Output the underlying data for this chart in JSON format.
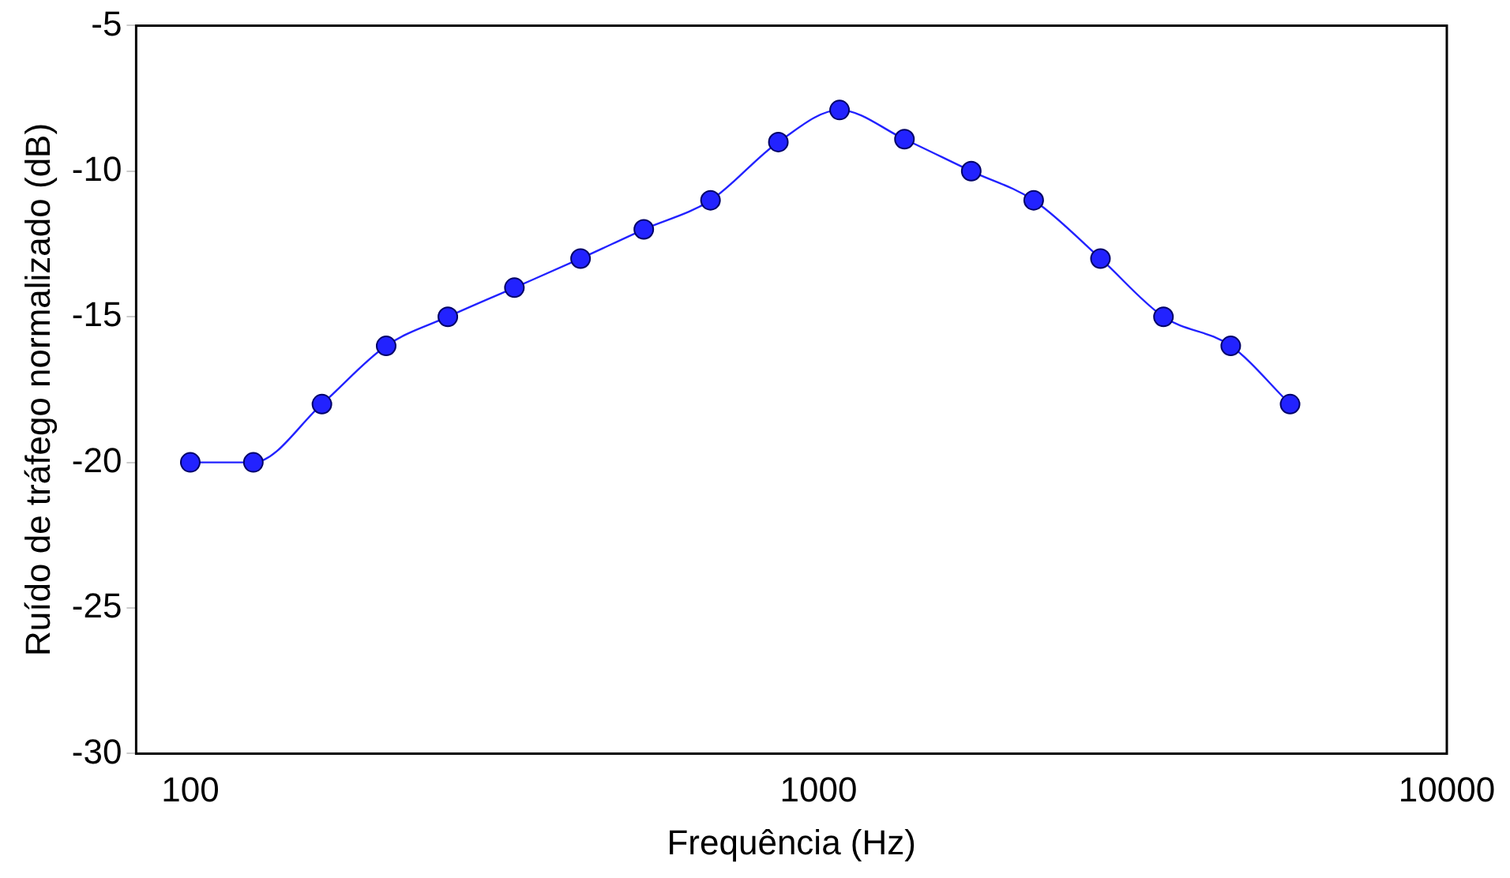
{
  "chart_data": {
    "type": "line",
    "xlabel": "Frequência (Hz)",
    "ylabel": "Ruído de tráfego normalizado (dB)",
    "log": "x",
    "xlim": [
      82,
      10000
    ],
    "xticks": [
      100,
      1000,
      10000
    ],
    "ylim": [
      -30,
      -5
    ],
    "yticks": [
      -30,
      -25,
      -20,
      -15,
      -10,
      -5
    ],
    "grid": false,
    "legend": false,
    "marker": "circle",
    "line_style": "solid",
    "x": [
      100,
      126,
      162,
      205,
      257,
      328,
      418,
      527,
      673,
      863,
      1080,
      1370,
      1750,
      2200,
      2810,
      3540,
      4530,
      5630
    ],
    "series": [
      {
        "color": "#2222ff",
        "values": [
          -20,
          -20,
          -18,
          -16,
          -15,
          -14,
          -13,
          -12,
          -11,
          -9,
          -7.9,
          -8.9,
          -10,
          -11,
          -13,
          -15,
          -16,
          -18
        ]
      }
    ]
  }
}
